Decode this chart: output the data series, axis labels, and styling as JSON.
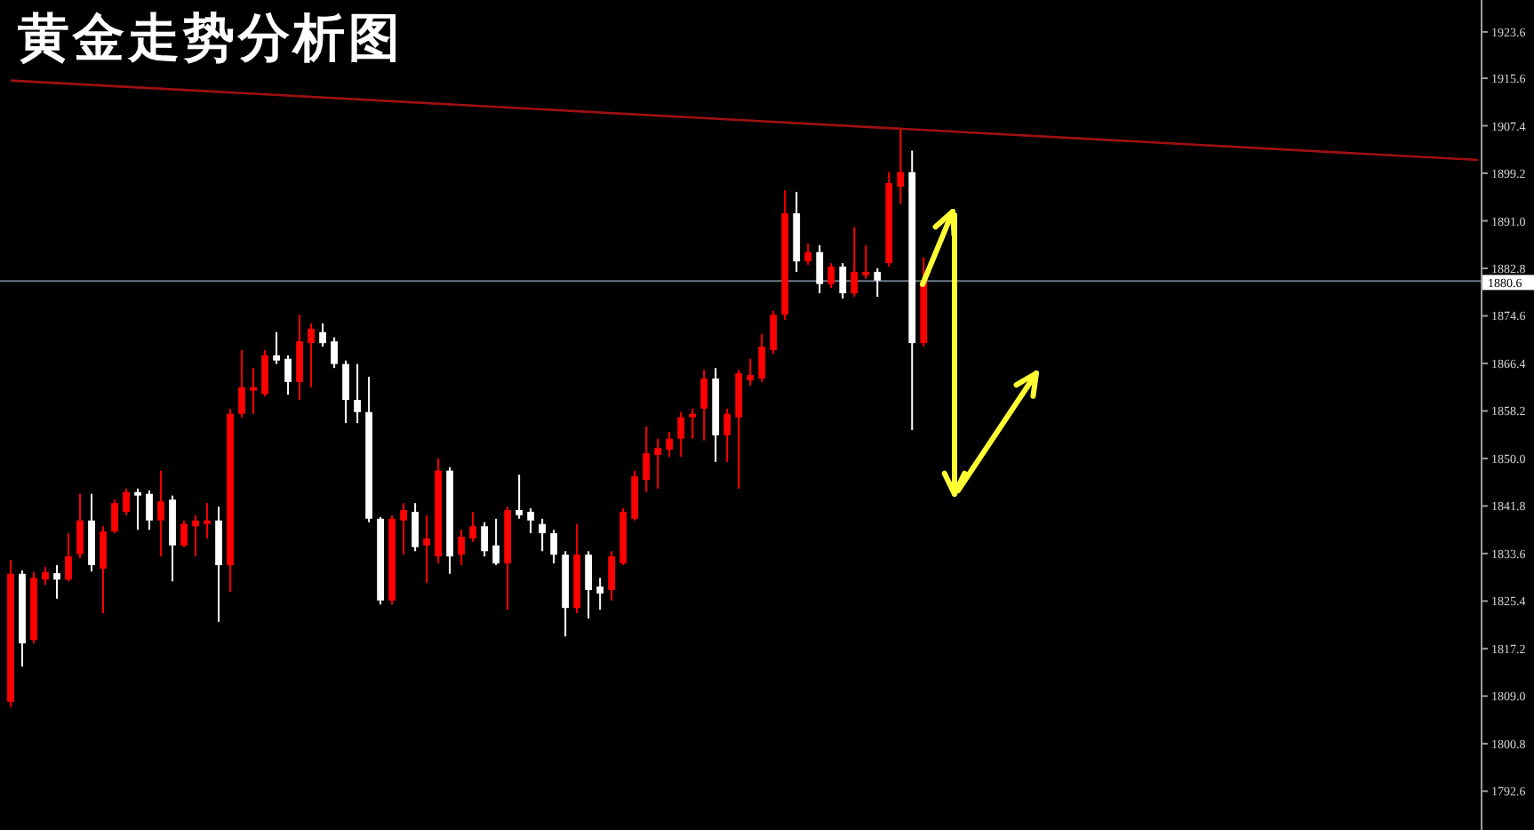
{
  "chart_data": {
    "type": "candlestick",
    "title": "黄金走势分析图",
    "categories": [
      null,
      null,
      null,
      null,
      null,
      null,
      null,
      null,
      null,
      null,
      null,
      null,
      null,
      null,
      null,
      null,
      null,
      null,
      null,
      null,
      null,
      null,
      null,
      null,
      null,
      null,
      null,
      null,
      null,
      null,
      null,
      null,
      null,
      null,
      null,
      null,
      null,
      null,
      null,
      null,
      null,
      null,
      null,
      null,
      null,
      null,
      null,
      null,
      null,
      null,
      null,
      null,
      null,
      null,
      null,
      null,
      null,
      null,
      null,
      null,
      null,
      null,
      null,
      null,
      null,
      null,
      null,
      null,
      null,
      null,
      null,
      null,
      null,
      null,
      null,
      null,
      null,
      null,
      null,
      null,
      null,
      null,
      null,
      null,
      null,
      null,
      null,
      null,
      null,
      null,
      null,
      null,
      null,
      null,
      null,
      null,
      null,
      null,
      null,
      null,
      null,
      null,
      null,
      null,
      null,
      null,
      null,
      null,
      null,
      null,
      null,
      null,
      null,
      null,
      null,
      null,
      null,
      null,
      null,
      null,
      null,
      null,
      null,
      null,
      null,
      null,
      null,
      null
    ],
    "ohlc": [
      [
        1808.0,
        1832.5,
        1807.1,
        1830.1
      ],
      [
        1830.1,
        1830.7,
        1814.1,
        1818.1
      ],
      [
        1818.7,
        1830.4,
        1818.1,
        1829.4
      ],
      [
        1829.1,
        1831.3,
        1828.2,
        1830.4
      ],
      [
        1830.2,
        1831.6,
        1825.8,
        1829.1
      ],
      [
        1829.1,
        1837.1,
        1828.8,
        1833.1
      ],
      [
        1833.5,
        1843.9,
        1832.8,
        1839.3
      ],
      [
        1839.3,
        1843.9,
        1830.5,
        1831.6
      ],
      [
        1831.0,
        1838.3,
        1823.3,
        1837.4
      ],
      [
        1837.4,
        1842.9,
        1837.1,
        1842.3
      ],
      [
        1840.8,
        1844.8,
        1840.2,
        1844.2
      ],
      [
        1844.2,
        1844.8,
        1837.7,
        1843.6
      ],
      [
        1843.9,
        1844.5,
        1837.7,
        1839.3
      ],
      [
        1839.3,
        1847.9,
        1833.1,
        1842.6
      ],
      [
        1842.9,
        1843.6,
        1828.8,
        1835.0
      ],
      [
        1835.0,
        1839.3,
        1834.7,
        1838.7
      ],
      [
        1838.3,
        1840.2,
        1833.1,
        1839.3
      ],
      [
        1838.7,
        1842.3,
        1836.2,
        1839.3
      ],
      [
        1839.3,
        1841.7,
        1821.8,
        1831.6
      ],
      [
        1831.6,
        1858.6,
        1827.0,
        1857.7
      ],
      [
        1857.7,
        1868.7,
        1857.1,
        1862.3
      ],
      [
        1861.7,
        1865.6,
        1857.7,
        1862.3
      ],
      [
        1861.1,
        1868.7,
        1860.7,
        1867.8
      ],
      [
        1867.8,
        1871.8,
        1866.3,
        1866.9
      ],
      [
        1867.2,
        1867.8,
        1861.0,
        1863.2
      ],
      [
        1863.2,
        1874.8,
        1860.1,
        1870.2
      ],
      [
        1869.9,
        1873.3,
        1862.3,
        1872.4
      ],
      [
        1871.8,
        1873.3,
        1869.3,
        1869.9
      ],
      [
        1870.2,
        1870.9,
        1865.6,
        1866.3
      ],
      [
        1866.3,
        1866.9,
        1856.1,
        1860.1
      ],
      [
        1860.1,
        1866.3,
        1856.1,
        1858.0
      ],
      [
        1858.0,
        1864.1,
        1839.0,
        1839.6
      ],
      [
        1839.6,
        1839.9,
        1824.8,
        1825.5
      ],
      [
        1825.5,
        1840.2,
        1824.8,
        1839.6
      ],
      [
        1839.3,
        1842.3,
        1833.4,
        1841.1
      ],
      [
        1840.8,
        1842.3,
        1834.0,
        1834.7
      ],
      [
        1835.0,
        1840.2,
        1828.5,
        1836.2
      ],
      [
        1833.1,
        1850.0,
        1831.9,
        1847.9
      ],
      [
        1847.9,
        1848.5,
        1830.1,
        1833.1
      ],
      [
        1833.4,
        1837.7,
        1831.6,
        1836.5
      ],
      [
        1836.2,
        1840.8,
        1835.6,
        1838.3
      ],
      [
        1838.3,
        1839.0,
        1833.1,
        1834.0
      ],
      [
        1835.0,
        1839.6,
        1831.6,
        1831.9
      ],
      [
        1831.9,
        1841.7,
        1823.9,
        1841.1
      ],
      [
        1841.1,
        1847.2,
        1839.6,
        1840.2
      ],
      [
        1840.8,
        1841.4,
        1837.1,
        1839.3
      ],
      [
        1838.7,
        1839.6,
        1834.0,
        1837.1
      ],
      [
        1837.1,
        1837.7,
        1831.9,
        1833.4
      ],
      [
        1833.4,
        1834.0,
        1819.3,
        1824.2
      ],
      [
        1824.2,
        1838.7,
        1823.3,
        1833.4
      ],
      [
        1833.4,
        1834.0,
        1822.4,
        1827.3
      ],
      [
        1827.9,
        1829.4,
        1823.9,
        1826.7
      ],
      [
        1827.3,
        1834.0,
        1825.5,
        1833.1
      ],
      [
        1831.9,
        1841.4,
        1831.6,
        1840.8
      ],
      [
        1839.6,
        1847.9,
        1839.3,
        1846.9
      ],
      [
        1846.3,
        1855.5,
        1844.2,
        1850.9
      ],
      [
        1850.6,
        1853.4,
        1844.8,
        1851.8
      ],
      [
        1851.5,
        1854.6,
        1850.3,
        1853.4
      ],
      [
        1853.4,
        1858.0,
        1850.3,
        1857.1
      ],
      [
        1857.1,
        1858.6,
        1853.4,
        1857.7
      ],
      [
        1858.6,
        1865.3,
        1853.1,
        1863.8
      ],
      [
        1863.8,
        1865.6,
        1849.4,
        1854.0
      ],
      [
        1854.0,
        1858.6,
        1849.4,
        1857.7
      ],
      [
        1857.1,
        1865.3,
        1844.8,
        1864.7
      ],
      [
        1863.5,
        1867.2,
        1862.6,
        1864.4
      ],
      [
        1863.8,
        1871.5,
        1863.2,
        1869.3
      ],
      [
        1868.7,
        1875.5,
        1868.1,
        1874.8
      ],
      [
        1874.8,
        1896.3,
        1873.9,
        1892.3
      ],
      [
        1892.3,
        1896.0,
        1882.2,
        1884.0
      ],
      [
        1884.0,
        1887.1,
        1883.4,
        1885.6
      ],
      [
        1885.6,
        1886.8,
        1878.5,
        1880.1
      ],
      [
        1880.1,
        1883.7,
        1879.4,
        1883.1
      ],
      [
        1883.1,
        1883.7,
        1877.6,
        1878.5
      ],
      [
        1878.5,
        1889.9,
        1877.9,
        1882.2
      ],
      [
        1881.6,
        1886.8,
        1881.0,
        1882.2
      ],
      [
        1882.2,
        1882.8,
        1877.9,
        1880.7
      ],
      [
        1883.7,
        1899.4,
        1883.1,
        1897.5
      ],
      [
        1896.9,
        1906.7,
        1893.9,
        1899.4
      ],
      [
        1899.4,
        1903.1,
        1854.9,
        1869.9
      ],
      [
        1869.9,
        1884.7,
        1869.3,
        1880.6
      ],
      null,
      null,
      null,
      null,
      null,
      null,
      null,
      null,
      null,
      null,
      null,
      null,
      null,
      null,
      null,
      null,
      null,
      null,
      null,
      null,
      null,
      null,
      null,
      null,
      null,
      null,
      null,
      null,
      null,
      null,
      null,
      null,
      null,
      null,
      null,
      null,
      null,
      null,
      null,
      null,
      null,
      null,
      null,
      null,
      null,
      null,
      null,
      null
    ],
    "colors": [
      "#ff0000",
      "#ffffff",
      "#ff0000",
      "#ff0000",
      "#ffffff",
      "#ff0000",
      "#ff0000",
      "#ffffff",
      "#ff0000",
      "#ff0000",
      "#ff0000",
      "#ffffff",
      "#ffffff",
      "#ff0000",
      "#ffffff",
      "#ff0000",
      "#ff0000",
      "#ff0000",
      "#ffffff",
      "#ff0000",
      "#ff0000",
      "#ff0000",
      "#ff0000",
      "#ffffff",
      "#ffffff",
      "#ff0000",
      "#ff0000",
      "#ffffff",
      "#ffffff",
      "#ffffff",
      "#ffffff",
      "#ffffff",
      "#ffffff",
      "#ff0000",
      "#ff0000",
      "#ffffff",
      "#ff0000",
      "#ff0000",
      "#ffffff",
      "#ff0000",
      "#ff0000",
      "#ffffff",
      "#ffffff",
      "#ff0000",
      "#ffffff",
      "#ffffff",
      "#ffffff",
      "#ffffff",
      "#ffffff",
      "#ff0000",
      "#ffffff",
      "#ffffff",
      "#ff0000",
      "#ff0000",
      "#ff0000",
      "#ff0000",
      "#ff0000",
      "#ff0000",
      "#ff0000",
      "#ff0000",
      "#ff0000",
      "#ffffff",
      "#ff0000",
      "#ff0000",
      "#ff0000",
      "#ff0000",
      "#ff0000",
      "#ff0000",
      "#ffffff",
      "#ff0000",
      "#ffffff",
      "#ff0000",
      "#ffffff",
      "#ff0000",
      "#ff0000",
      "#ffffff",
      "#ff0000",
      "#ff0000",
      "#ffffff",
      "#ff0000",
      null,
      null,
      null,
      null,
      null,
      null,
      null,
      null,
      null,
      null,
      null,
      null,
      null,
      null,
      null,
      null,
      null,
      null,
      null,
      null,
      null,
      null,
      null,
      null,
      null,
      null,
      null,
      null,
      null,
      null,
      null,
      null,
      null,
      null,
      null,
      null,
      null,
      null,
      null,
      null,
      null,
      null,
      null,
      null,
      null,
      null,
      null,
      null
    ],
    "series": [
      {
        "type": "line",
        "color": "#a01010",
        "values": [
          1915.2,
          null,
          null,
          null,
          null,
          null,
          null,
          null,
          null,
          null,
          null,
          null,
          null,
          null,
          null,
          null,
          null,
          null,
          null,
          null,
          null,
          null,
          null,
          null,
          null,
          null,
          null,
          null,
          null,
          null,
          null,
          null,
          null,
          null,
          null,
          null,
          null,
          null,
          null,
          null,
          null,
          null,
          null,
          null,
          null,
          null,
          null,
          null,
          null,
          null,
          null,
          null,
          null,
          null,
          null,
          null,
          null,
          null,
          null,
          null,
          null,
          null,
          null,
          null,
          null,
          null,
          null,
          null,
          null,
          null,
          null,
          null,
          null,
          null,
          null,
          null,
          null,
          null,
          null,
          null,
          null,
          null,
          null,
          null,
          null,
          null,
          null,
          null,
          null,
          null,
          null,
          null,
          null,
          null,
          null,
          null,
          null,
          null,
          null,
          null,
          null,
          null,
          null,
          null,
          null,
          null,
          null,
          null,
          null,
          null,
          null,
          null,
          null,
          null,
          null,
          null,
          null,
          null,
          null,
          null,
          null,
          null,
          null,
          null,
          null,
          null,
          null,
          1901.5
        ]
      }
    ],
    "ylim": [
      1785.9,
      1929.1
    ],
    "yticks": [
      1923.6,
      1915.6,
      1907.4,
      1899.2,
      {
        "value": 1891,
        "label": "1891.0"
      },
      1882.8,
      1874.6,
      1866.4,
      1858.2,
      {
        "value": 1850,
        "label": "1850.0"
      },
      1841.8,
      1833.6,
      1825.4,
      1817.2,
      {
        "value": 1809,
        "label": "1809.0"
      },
      1800.8,
      1792.6
    ],
    "ref_lines": [
      {
        "axis": "y",
        "value": 1880.6,
        "label": "1880.6",
        "color": "#6a7888"
      }
    ],
    "tick_labels": "y"
  }
}
